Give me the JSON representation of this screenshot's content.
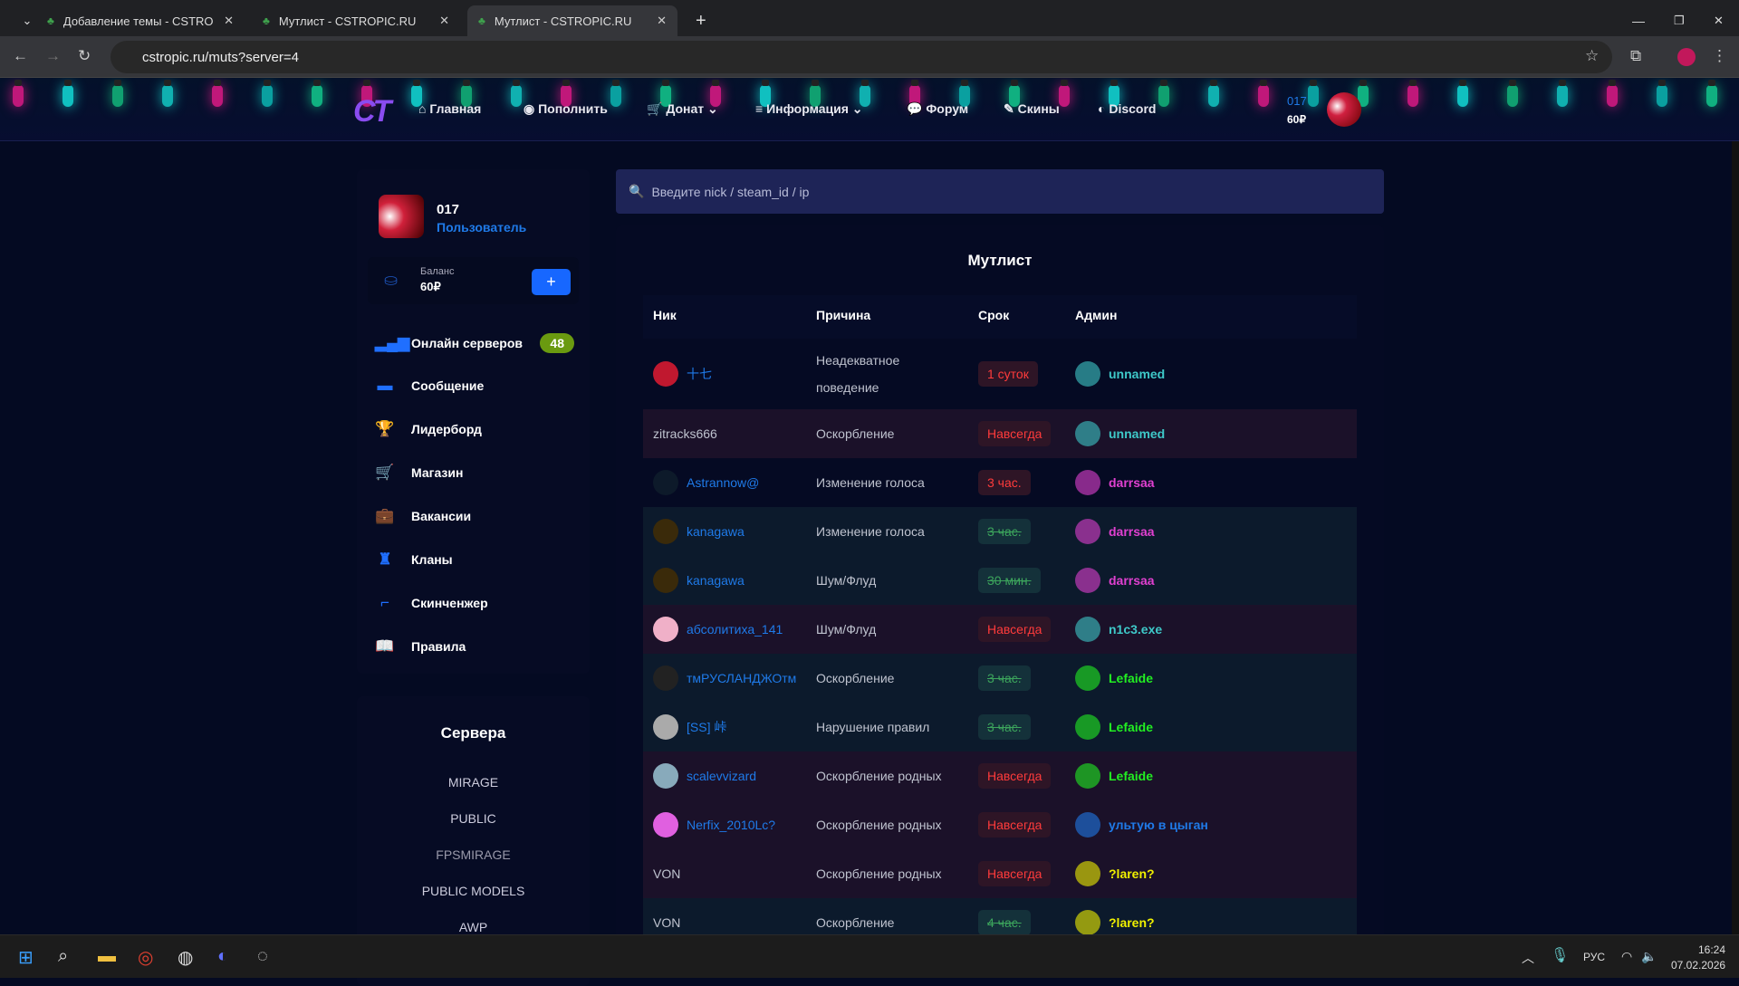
{
  "browser": {
    "tabs": [
      {
        "title": "Добавление темы - CSTROPIC.RU"
      },
      {
        "title": "Мутлист - CSTROPIC.RU"
      },
      {
        "title": "Мутлист - CSTROPIC.RU",
        "active": true
      }
    ],
    "url": "cstropic.ru/muts?server=4"
  },
  "header": {
    "logo": "CT",
    "menu": [
      "Главная",
      "Пополнить",
      "Донат",
      "Информация",
      "Форум",
      "Скины",
      "Discord"
    ],
    "user": "017",
    "balance": "60₽"
  },
  "profile": {
    "name": "017",
    "role": "Пользователь"
  },
  "sidebar": {
    "balance_label": "Баланс",
    "balance": "60₽",
    "add": "+",
    "online_label": "Онлайн серверов",
    "online_count": "48",
    "items": [
      "Сообщение",
      "Лидерборд",
      "Магазин",
      "Вакансии",
      "Кланы",
      "Скинченжер",
      "Правила"
    ]
  },
  "servers": {
    "title": "Сервера",
    "items": [
      "MIRAGE",
      "PUBLIC",
      "FPSMIRAGE",
      "PUBLIC MODELS",
      "AWP"
    ]
  },
  "search": {
    "placeholder": "Введите nick / steam_id / ip"
  },
  "mutelist": {
    "title": "Мутлист",
    "columns": [
      "Ник",
      "Причина",
      "Срок",
      "Админ"
    ],
    "rows": [
      {
        "nick": "十七",
        "reason": "Неадекватное поведение",
        "term": "1 суток",
        "status": "active",
        "admin": "unnamed",
        "admin_color": "#3ec8c8",
        "avatar": "#c0182f"
      },
      {
        "nick": "zitracks666",
        "reason": "Оскорбление",
        "term": "Навсегда",
        "status": "perm",
        "admin": "unnamed",
        "admin_color": "#3ec8c8",
        "avatar": ""
      },
      {
        "nick": "Astrannow@",
        "reason": "Изменение голоса",
        "term": "3 час.",
        "status": "active",
        "admin": "darrsaa",
        "admin_color": "#e040d0",
        "avatar": "#0d1a2a"
      },
      {
        "nick": "kanagawa",
        "reason": "Изменение голоса",
        "term": "3 час.",
        "status": "expired",
        "admin": "darrsaa",
        "admin_color": "#e040d0",
        "avatar": "#3a2a0a"
      },
      {
        "nick": "kanagawa",
        "reason": "Шум/Флуд",
        "term": "30 мин.",
        "status": "expired",
        "admin": "darrsaa",
        "admin_color": "#e040d0",
        "avatar": "#3a2a0a"
      },
      {
        "nick": "абсолитиха_141",
        "reason": "Шум/Флуд",
        "term": "Навсегда",
        "status": "perm",
        "admin": "n1c3.exe",
        "admin_color": "#3ec8c8",
        "avatar": "#f0b0c8"
      },
      {
        "nick": "тмРУСЛАНДЖОтм",
        "reason": "Оскорбление",
        "term": "3 час.",
        "status": "expired",
        "admin": "Lefaide",
        "admin_color": "#22ee22",
        "avatar": "#222"
      },
      {
        "nick": "[SS] 峠",
        "reason": "Нарушение правил",
        "term": "3 час.",
        "status": "expired",
        "admin": "Lefaide",
        "admin_color": "#22ee22",
        "avatar": "#aaa"
      },
      {
        "nick": "scalevvizard",
        "reason": "Оскорбление родных",
        "term": "Навсегда",
        "status": "perm",
        "admin": "Lefaide",
        "admin_color": "#22ee22",
        "avatar": "#8ab"
      },
      {
        "nick": "Nerfix_2010Lc?",
        "reason": "Оскорбление родных",
        "term": "Навсегда",
        "status": "perm",
        "admin": "ультую в цыган",
        "admin_color": "#1f7ae8",
        "avatar": "#e060e0"
      },
      {
        "nick": "VON",
        "reason": "Оскорбление родных",
        "term": "Навсегда",
        "status": "perm",
        "admin": "?laren?",
        "admin_color": "#f0f000",
        "avatar": ""
      },
      {
        "nick": "VON",
        "reason": "Оскорбление",
        "term": "4 час.",
        "status": "expired",
        "admin": "?laren?",
        "admin_color": "#f0f000",
        "avatar": ""
      }
    ]
  },
  "taskbar": {
    "lang": "РУС",
    "time": "16:24",
    "date": "07.02.2026"
  }
}
